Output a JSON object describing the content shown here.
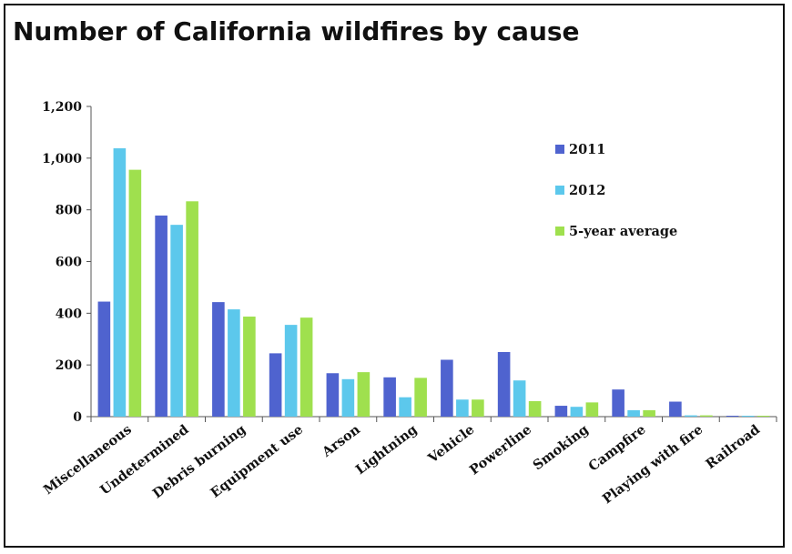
{
  "colors": {
    "2011": "#4f63cf",
    "2012": "#5cc8ec",
    "5-year average": "#9fe04e"
  },
  "chart_data": {
    "type": "bar",
    "title": "Number of California wildfires by cause",
    "xlabel": "",
    "ylabel": "",
    "ylim": [
      0,
      1200
    ],
    "yticks": [
      "0",
      "200",
      "400",
      "600",
      "800",
      "1,000",
      "1,200"
    ],
    "ytick_values": [
      0,
      200,
      400,
      600,
      800,
      1000,
      1200
    ],
    "grid": false,
    "legend_position": "top-right",
    "categories": [
      "Miscellaneous",
      "Undetermined",
      "Debris burning",
      "Equipment use",
      "Arson",
      "Lightning",
      "Vehicle",
      "Powerline",
      "Smoking",
      "Campfire",
      "Playing with fire",
      "Railroad"
    ],
    "series": [
      {
        "name": "2011",
        "values": [
          445,
          778,
          443,
          245,
          168,
          152,
          220,
          250,
          42,
          105,
          58,
          3
        ]
      },
      {
        "name": "2012",
        "values": [
          1038,
          742,
          415,
          355,
          145,
          75,
          66,
          140,
          38,
          25,
          5,
          2
        ]
      },
      {
        "name": "5-year average",
        "values": [
          955,
          833,
          387,
          383,
          172,
          150,
          66,
          60,
          55,
          25,
          5,
          3
        ]
      }
    ]
  }
}
